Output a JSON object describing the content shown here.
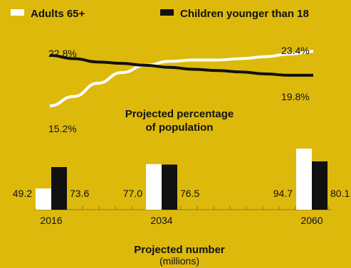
{
  "chart_data": [
    {
      "type": "line",
      "title": "Projected percentage of population",
      "title_lines": [
        "Projected percentage",
        "of population"
      ],
      "x": [
        2016,
        2020,
        2024,
        2028,
        2032,
        2036,
        2040,
        2044,
        2048,
        2052,
        2056,
        2060
      ],
      "series": [
        {
          "name": "Adults 65+",
          "color": "#ffffff",
          "values": [
            15.2,
            16.6,
            18.6,
            20.2,
            21.3,
            21.9,
            22.1,
            22.1,
            22.3,
            22.6,
            23.0,
            23.4
          ],
          "start_label": "15.2%",
          "end_label": "23.4%"
        },
        {
          "name": "Children younger than 18",
          "color": "#111111",
          "values": [
            22.8,
            22.3,
            21.8,
            21.6,
            21.3,
            21.0,
            20.7,
            20.5,
            20.3,
            20.0,
            19.8,
            19.8
          ],
          "start_label": "22.8%",
          "end_label": "19.8%"
        }
      ],
      "ylim": [
        14,
        24.5
      ],
      "grid": false,
      "legend": "top"
    },
    {
      "type": "bar",
      "title": "Projected number",
      "subtitle": "(millions)",
      "categories": [
        "2016",
        "2034",
        "2060"
      ],
      "series": [
        {
          "name": "Adults 65+",
          "color": "#ffffff",
          "values": [
            49.2,
            77.0,
            94.7
          ],
          "labels": [
            "49.2",
            "77.0",
            "94.7"
          ]
        },
        {
          "name": "Children younger than 18",
          "color": "#111111",
          "values": [
            73.6,
            76.5,
            80.1
          ],
          "labels": [
            "73.6",
            "76.5",
            "80.1"
          ]
        }
      ],
      "ylim": [
        25,
        102
      ],
      "grid": false
    }
  ],
  "legend": {
    "items": [
      {
        "label": "Adults 65+",
        "color": "#ffffff"
      },
      {
        "label": "Children younger than 18",
        "color": "#111111"
      }
    ]
  },
  "colors": {
    "background": "#ddb90c",
    "axis": "#8a7a2a"
  }
}
